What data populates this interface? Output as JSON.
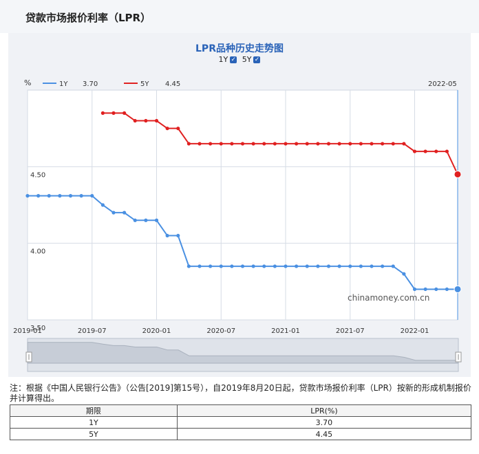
{
  "page": {
    "title": "贷款市场报价利率（LPR）"
  },
  "chart_controls": {
    "toggles": [
      {
        "label": "1Y",
        "checked": true
      },
      {
        "label": "5Y",
        "checked": true
      }
    ]
  },
  "legend": {
    "unit": "%",
    "current_date": "2022-05",
    "items": [
      {
        "name": "1Y",
        "value": "3.70",
        "color": "#4a90e2"
      },
      {
        "name": "5Y",
        "value": "4.45",
        "color": "#e02020"
      }
    ]
  },
  "watermark": "chinamoney.com.cn",
  "chart_data": {
    "type": "line",
    "title": "LPR品种历史走势图",
    "ylabel": "%",
    "ylim": [
      3.5,
      5.0
    ],
    "yticks": [
      "3.50",
      "4.00",
      "4.50"
    ],
    "xticks": [
      "2019-01",
      "2019-07",
      "2020-01",
      "2020-07",
      "2021-01",
      "2021-07",
      "2022-01"
    ],
    "xlim": [
      "2019-01",
      "2022-05"
    ],
    "grid": true,
    "legend_position": "top-left",
    "series": [
      {
        "name": "1Y",
        "color": "#4a90e2",
        "points": [
          [
            "2019-01",
            4.31
          ],
          [
            "2019-02",
            4.31
          ],
          [
            "2019-03",
            4.31
          ],
          [
            "2019-04",
            4.31
          ],
          [
            "2019-05",
            4.31
          ],
          [
            "2019-06",
            4.31
          ],
          [
            "2019-07",
            4.31
          ],
          [
            "2019-08",
            4.25
          ],
          [
            "2019-09",
            4.2
          ],
          [
            "2019-10",
            4.2
          ],
          [
            "2019-11",
            4.15
          ],
          [
            "2019-12",
            4.15
          ],
          [
            "2020-01",
            4.15
          ],
          [
            "2020-02",
            4.05
          ],
          [
            "2020-03",
            4.05
          ],
          [
            "2020-04",
            3.85
          ],
          [
            "2020-05",
            3.85
          ],
          [
            "2020-06",
            3.85
          ],
          [
            "2020-07",
            3.85
          ],
          [
            "2020-08",
            3.85
          ],
          [
            "2020-09",
            3.85
          ],
          [
            "2020-10",
            3.85
          ],
          [
            "2020-11",
            3.85
          ],
          [
            "2020-12",
            3.85
          ],
          [
            "2021-01",
            3.85
          ],
          [
            "2021-02",
            3.85
          ],
          [
            "2021-03",
            3.85
          ],
          [
            "2021-04",
            3.85
          ],
          [
            "2021-05",
            3.85
          ],
          [
            "2021-06",
            3.85
          ],
          [
            "2021-07",
            3.85
          ],
          [
            "2021-08",
            3.85
          ],
          [
            "2021-09",
            3.85
          ],
          [
            "2021-10",
            3.85
          ],
          [
            "2021-11",
            3.85
          ],
          [
            "2021-12",
            3.8
          ],
          [
            "2022-01",
            3.7
          ],
          [
            "2022-02",
            3.7
          ],
          [
            "2022-03",
            3.7
          ],
          [
            "2022-04",
            3.7
          ],
          [
            "2022-05",
            3.7
          ]
        ]
      },
      {
        "name": "5Y",
        "color": "#e02020",
        "points": [
          [
            "2019-08",
            4.85
          ],
          [
            "2019-09",
            4.85
          ],
          [
            "2019-10",
            4.85
          ],
          [
            "2019-11",
            4.8
          ],
          [
            "2019-12",
            4.8
          ],
          [
            "2020-01",
            4.8
          ],
          [
            "2020-02",
            4.75
          ],
          [
            "2020-03",
            4.75
          ],
          [
            "2020-04",
            4.65
          ],
          [
            "2020-05",
            4.65
          ],
          [
            "2020-06",
            4.65
          ],
          [
            "2020-07",
            4.65
          ],
          [
            "2020-08",
            4.65
          ],
          [
            "2020-09",
            4.65
          ],
          [
            "2020-10",
            4.65
          ],
          [
            "2020-11",
            4.65
          ],
          [
            "2020-12",
            4.65
          ],
          [
            "2021-01",
            4.65
          ],
          [
            "2021-02",
            4.65
          ],
          [
            "2021-03",
            4.65
          ],
          [
            "2021-04",
            4.65
          ],
          [
            "2021-05",
            4.65
          ],
          [
            "2021-06",
            4.65
          ],
          [
            "2021-07",
            4.65
          ],
          [
            "2021-08",
            4.65
          ],
          [
            "2021-09",
            4.65
          ],
          [
            "2021-10",
            4.65
          ],
          [
            "2021-11",
            4.65
          ],
          [
            "2021-12",
            4.65
          ],
          [
            "2022-01",
            4.6
          ],
          [
            "2022-02",
            4.6
          ],
          [
            "2022-03",
            4.6
          ],
          [
            "2022-04",
            4.6
          ],
          [
            "2022-05",
            4.45
          ]
        ]
      }
    ]
  },
  "note": "注：根据《中国人民银行公告》（公告[2019]第15号），自2019年8月20日起，贷款市场报价利率（LPR）按新的形成机制报价并计算得出。",
  "table": {
    "headers": [
      "期限",
      "LPR(%)"
    ],
    "rows": [
      [
        "1Y",
        "3.70"
      ],
      [
        "5Y",
        "4.45"
      ]
    ]
  }
}
